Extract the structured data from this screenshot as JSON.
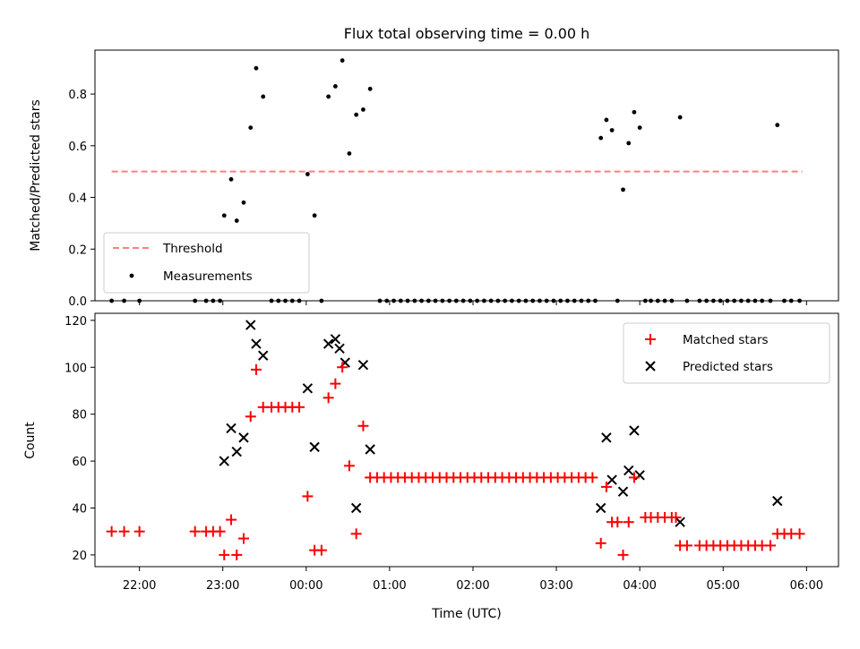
{
  "figure": {
    "title": "Flux total observing time = 0.00 h"
  },
  "chart_data": [
    {
      "panel": "top",
      "type": "scatter",
      "title": "Flux total observing time = 0.00 h",
      "xlabel": "",
      "ylabel": "Matched/Predicted stars",
      "xlim": [
        "21:28",
        "06:23"
      ],
      "ylim": [
        0,
        0.97
      ],
      "yticks": [
        0.0,
        0.2,
        0.4,
        0.6,
        0.8
      ],
      "ytick_labels": [
        "0.0",
        "0.2",
        "0.4",
        "0.6",
        "0.8"
      ],
      "legend_location": "lower-left",
      "series": [
        {
          "name": "Threshold",
          "type": "line",
          "style": "dashed",
          "color": "#ff7f7f",
          "points": [
            [
              "21:40",
              0.5
            ],
            [
              "05:57",
              0.5
            ]
          ]
        },
        {
          "name": "Measurements",
          "type": "scatter",
          "color": "#000000",
          "points": [
            [
              "21:40",
              0.0
            ],
            [
              "21:49",
              0.0
            ],
            [
              "22:00",
              0.0
            ],
            [
              "22:40",
              0.0
            ],
            [
              "22:48",
              0.0
            ],
            [
              "22:53",
              0.0
            ],
            [
              "22:58",
              0.0
            ],
            [
              "23:01",
              0.33
            ],
            [
              "23:06",
              0.47
            ],
            [
              "23:10",
              0.31
            ],
            [
              "23:15",
              0.38
            ],
            [
              "23:20",
              0.67
            ],
            [
              "23:24",
              0.9
            ],
            [
              "23:29",
              0.79
            ],
            [
              "23:35",
              0.0
            ],
            [
              "23:40",
              0.0
            ],
            [
              "23:45",
              0.0
            ],
            [
              "23:50",
              0.0
            ],
            [
              "23:55",
              0.0
            ],
            [
              "00:01",
              0.49
            ],
            [
              "00:06",
              0.33
            ],
            [
              "00:11",
              0.0
            ],
            [
              "00:16",
              0.79
            ],
            [
              "00:21",
              0.83
            ],
            [
              "00:26",
              0.93
            ],
            [
              "00:31",
              0.57
            ],
            [
              "00:36",
              0.72
            ],
            [
              "00:41",
              0.74
            ],
            [
              "00:46",
              0.82
            ],
            [
              "00:53",
              0.0
            ],
            [
              "00:58",
              0.0
            ],
            [
              "01:03",
              0.0
            ],
            [
              "01:08",
              0.0
            ],
            [
              "01:13",
              0.0
            ],
            [
              "01:18",
              0.0
            ],
            [
              "01:23",
              0.0
            ],
            [
              "01:28",
              0.0
            ],
            [
              "01:33",
              0.0
            ],
            [
              "01:38",
              0.0
            ],
            [
              "01:43",
              0.0
            ],
            [
              "01:48",
              0.0
            ],
            [
              "01:53",
              0.0
            ],
            [
              "01:58",
              0.0
            ],
            [
              "02:03",
              0.0
            ],
            [
              "02:08",
              0.0
            ],
            [
              "02:13",
              0.0
            ],
            [
              "02:18",
              0.0
            ],
            [
              "02:23",
              0.0
            ],
            [
              "02:28",
              0.0
            ],
            [
              "02:33",
              0.0
            ],
            [
              "02:38",
              0.0
            ],
            [
              "02:43",
              0.0
            ],
            [
              "02:48",
              0.0
            ],
            [
              "02:53",
              0.0
            ],
            [
              "02:58",
              0.0
            ],
            [
              "03:03",
              0.0
            ],
            [
              "03:08",
              0.0
            ],
            [
              "03:13",
              0.0
            ],
            [
              "03:18",
              0.0
            ],
            [
              "03:23",
              0.0
            ],
            [
              "03:28",
              0.0
            ],
            [
              "03:32",
              0.63
            ],
            [
              "03:36",
              0.7
            ],
            [
              "03:40",
              0.66
            ],
            [
              "03:44",
              0.0
            ],
            [
              "03:48",
              0.43
            ],
            [
              "03:52",
              0.61
            ],
            [
              "03:56",
              0.73
            ],
            [
              "04:00",
              0.67
            ],
            [
              "04:04",
              0.0
            ],
            [
              "04:08",
              0.0
            ],
            [
              "04:13",
              0.0
            ],
            [
              "04:18",
              0.0
            ],
            [
              "04:23",
              0.0
            ],
            [
              "04:29",
              0.71
            ],
            [
              "04:34",
              0.0
            ],
            [
              "04:43",
              0.0
            ],
            [
              "04:48",
              0.0
            ],
            [
              "04:53",
              0.0
            ],
            [
              "04:58",
              0.0
            ],
            [
              "05:03",
              0.0
            ],
            [
              "05:08",
              0.0
            ],
            [
              "05:13",
              0.0
            ],
            [
              "05:18",
              0.0
            ],
            [
              "05:23",
              0.0
            ],
            [
              "05:28",
              0.0
            ],
            [
              "05:34",
              0.0
            ],
            [
              "05:39",
              0.68
            ],
            [
              "05:44",
              0.0
            ],
            [
              "05:49",
              0.0
            ],
            [
              "05:55",
              0.0
            ]
          ]
        }
      ]
    },
    {
      "panel": "bottom",
      "type": "scatter",
      "title": "",
      "xlabel": "Time (UTC)",
      "ylabel": "Count",
      "xlim": [
        "21:28",
        "06:23"
      ],
      "ylim": [
        15,
        123
      ],
      "xticks": [
        "22:00",
        "23:00",
        "00:00",
        "01:00",
        "02:00",
        "03:00",
        "04:00",
        "05:00",
        "06:00"
      ],
      "yticks": [
        20,
        40,
        60,
        80,
        100,
        120
      ],
      "ytick_labels": [
        "20",
        "40",
        "60",
        "80",
        "100",
        "120"
      ],
      "legend_location": "top-right",
      "series": [
        {
          "name": "Matched stars",
          "type": "scatter",
          "marker": "plus",
          "color": "#ff0000",
          "points": [
            [
              "21:40",
              30
            ],
            [
              "21:49",
              30
            ],
            [
              "22:00",
              30
            ],
            [
              "22:40",
              30
            ],
            [
              "22:48",
              30
            ],
            [
              "22:53",
              30
            ],
            [
              "22:58",
              30
            ],
            [
              "23:01",
              20
            ],
            [
              "23:06",
              35
            ],
            [
              "23:10",
              20
            ],
            [
              "23:15",
              27
            ],
            [
              "23:20",
              79
            ],
            [
              "23:24",
              99
            ],
            [
              "23:29",
              83
            ],
            [
              "23:35",
              83
            ],
            [
              "23:40",
              83
            ],
            [
              "23:45",
              83
            ],
            [
              "23:50",
              83
            ],
            [
              "23:55",
              83
            ],
            [
              "00:01",
              45
            ],
            [
              "00:06",
              22
            ],
            [
              "00:11",
              22
            ],
            [
              "00:16",
              87
            ],
            [
              "00:21",
              93
            ],
            [
              "00:26",
              100
            ],
            [
              "00:31",
              58
            ],
            [
              "00:36",
              29
            ],
            [
              "00:41",
              75
            ],
            [
              "00:46",
              53
            ],
            [
              "00:51",
              53
            ],
            [
              "00:56",
              53
            ],
            [
              "01:01",
              53
            ],
            [
              "01:06",
              53
            ],
            [
              "01:11",
              53
            ],
            [
              "01:16",
              53
            ],
            [
              "01:21",
              53
            ],
            [
              "01:26",
              53
            ],
            [
              "01:31",
              53
            ],
            [
              "01:36",
              53
            ],
            [
              "01:41",
              53
            ],
            [
              "01:46",
              53
            ],
            [
              "01:51",
              53
            ],
            [
              "01:56",
              53
            ],
            [
              "02:01",
              53
            ],
            [
              "02:06",
              53
            ],
            [
              "02:11",
              53
            ],
            [
              "02:16",
              53
            ],
            [
              "02:21",
              53
            ],
            [
              "02:26",
              53
            ],
            [
              "02:31",
              53
            ],
            [
              "02:36",
              53
            ],
            [
              "02:41",
              53
            ],
            [
              "02:46",
              53
            ],
            [
              "02:51",
              53
            ],
            [
              "02:56",
              53
            ],
            [
              "03:01",
              53
            ],
            [
              "03:06",
              53
            ],
            [
              "03:11",
              53
            ],
            [
              "03:16",
              53
            ],
            [
              "03:21",
              53
            ],
            [
              "03:26",
              53
            ],
            [
              "03:32",
              25
            ],
            [
              "03:36",
              49
            ],
            [
              "03:40",
              34
            ],
            [
              "03:44",
              34
            ],
            [
              "03:48",
              20
            ],
            [
              "03:52",
              34
            ],
            [
              "03:56",
              53
            ],
            [
              "04:04",
              36
            ],
            [
              "04:08",
              36
            ],
            [
              "04:13",
              36
            ],
            [
              "04:18",
              36
            ],
            [
              "04:23",
              36
            ],
            [
              "04:26",
              36
            ],
            [
              "04:29",
              24
            ],
            [
              "04:34",
              24
            ],
            [
              "04:43",
              24
            ],
            [
              "04:48",
              24
            ],
            [
              "04:53",
              24
            ],
            [
              "04:58",
              24
            ],
            [
              "05:03",
              24
            ],
            [
              "05:08",
              24
            ],
            [
              "05:13",
              24
            ],
            [
              "05:18",
              24
            ],
            [
              "05:23",
              24
            ],
            [
              "05:28",
              24
            ],
            [
              "05:34",
              24
            ],
            [
              "05:39",
              29
            ],
            [
              "05:44",
              29
            ],
            [
              "05:49",
              29
            ],
            [
              "05:55",
              29
            ]
          ]
        },
        {
          "name": "Predicted stars",
          "type": "scatter",
          "marker": "x",
          "color": "#000000",
          "points": [
            [
              "23:01",
              60
            ],
            [
              "23:06",
              74
            ],
            [
              "23:10",
              64
            ],
            [
              "23:15",
              70
            ],
            [
              "23:20",
              118
            ],
            [
              "23:24",
              110
            ],
            [
              "23:29",
              105
            ],
            [
              "00:01",
              91
            ],
            [
              "00:06",
              66
            ],
            [
              "00:16",
              110
            ],
            [
              "00:21",
              112
            ],
            [
              "00:24",
              108
            ],
            [
              "00:28",
              102
            ],
            [
              "00:36",
              40
            ],
            [
              "00:41",
              101
            ],
            [
              "00:46",
              65
            ],
            [
              "03:32",
              40
            ],
            [
              "03:36",
              70
            ],
            [
              "03:40",
              52
            ],
            [
              "03:48",
              47
            ],
            [
              "03:52",
              56
            ],
            [
              "03:56",
              73
            ],
            [
              "04:00",
              54
            ],
            [
              "04:29",
              34
            ],
            [
              "05:39",
              43
            ]
          ]
        }
      ]
    }
  ]
}
